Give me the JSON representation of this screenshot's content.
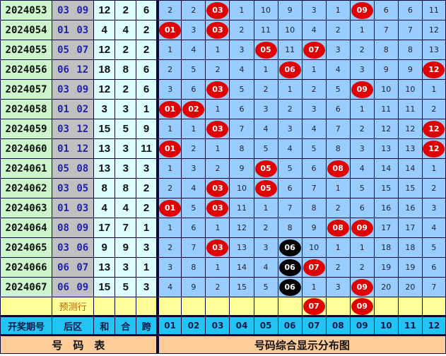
{
  "colors": {
    "hit": "#e00000",
    "repeat_hit": "#000000",
    "grid": "#99ccff",
    "header": "#22c4f4",
    "prediction_row": "#ffff99",
    "footer": "#ffcc99"
  },
  "rows": [
    {
      "issue": "2024053",
      "back": "03 09",
      "sum": "12",
      "he": "2",
      "kua": "6",
      "cells": [
        "2",
        "2",
        "03",
        "1",
        "10",
        "9",
        "3",
        "1",
        "09",
        "6",
        "6",
        "11"
      ],
      "black": []
    },
    {
      "issue": "2024054",
      "back": "01 03",
      "sum": "4",
      "he": "4",
      "kua": "2",
      "cells": [
        "01",
        "3",
        "03",
        "2",
        "11",
        "10",
        "4",
        "2",
        "1",
        "7",
        "7",
        "12"
      ],
      "black": []
    },
    {
      "issue": "2024055",
      "back": "05 07",
      "sum": "12",
      "he": "2",
      "kua": "2",
      "cells": [
        "1",
        "4",
        "1",
        "3",
        "05",
        "11",
        "07",
        "3",
        "2",
        "8",
        "8",
        "13"
      ],
      "black": []
    },
    {
      "issue": "2024056",
      "back": "06 12",
      "sum": "18",
      "he": "8",
      "kua": "6",
      "cells": [
        "2",
        "5",
        "2",
        "4",
        "1",
        "06",
        "1",
        "4",
        "3",
        "9",
        "9",
        "12"
      ],
      "black": []
    },
    {
      "issue": "2024057",
      "back": "03 09",
      "sum": "12",
      "he": "2",
      "kua": "6",
      "cells": [
        "3",
        "6",
        "03",
        "5",
        "2",
        "1",
        "2",
        "5",
        "09",
        "10",
        "10",
        "1"
      ],
      "black": []
    },
    {
      "issue": "2024058",
      "back": "01 02",
      "sum": "3",
      "he": "3",
      "kua": "1",
      "cells": [
        "01",
        "02",
        "1",
        "6",
        "3",
        "2",
        "3",
        "6",
        "1",
        "11",
        "11",
        "2"
      ],
      "black": []
    },
    {
      "issue": "2024059",
      "back": "03 12",
      "sum": "15",
      "he": "5",
      "kua": "9",
      "cells": [
        "1",
        "1",
        "03",
        "7",
        "4",
        "3",
        "4",
        "7",
        "2",
        "12",
        "12",
        "12"
      ],
      "black": []
    },
    {
      "issue": "2024060",
      "back": "01 12",
      "sum": "13",
      "he": "3",
      "kua": "11",
      "cells": [
        "01",
        "2",
        "1",
        "8",
        "5",
        "4",
        "5",
        "8",
        "3",
        "13",
        "13",
        "12"
      ],
      "black": []
    },
    {
      "issue": "2024061",
      "back": "05 08",
      "sum": "13",
      "he": "3",
      "kua": "3",
      "cells": [
        "1",
        "3",
        "2",
        "9",
        "05",
        "5",
        "6",
        "08",
        "4",
        "14",
        "14",
        "1"
      ],
      "black": []
    },
    {
      "issue": "2024062",
      "back": "03 05",
      "sum": "8",
      "he": "8",
      "kua": "2",
      "cells": [
        "2",
        "4",
        "03",
        "10",
        "05",
        "6",
        "7",
        "1",
        "5",
        "15",
        "15",
        "2"
      ],
      "black": []
    },
    {
      "issue": "2024063",
      "back": "01 03",
      "sum": "4",
      "he": "4",
      "kua": "2",
      "cells": [
        "01",
        "5",
        "03",
        "11",
        "1",
        "7",
        "8",
        "2",
        "6",
        "16",
        "16",
        "3"
      ],
      "black": []
    },
    {
      "issue": "2024064",
      "back": "08 09",
      "sum": "17",
      "he": "7",
      "kua": "1",
      "cells": [
        "1",
        "6",
        "1",
        "12",
        "2",
        "8",
        "9",
        "08",
        "09",
        "17",
        "17",
        "4"
      ],
      "black": []
    },
    {
      "issue": "2024065",
      "back": "03 06",
      "sum": "9",
      "he": "9",
      "kua": "3",
      "cells": [
        "2",
        "7",
        "03",
        "13",
        "3",
        "06",
        "10",
        "1",
        "1",
        "18",
        "18",
        "5"
      ],
      "black": [
        6
      ]
    },
    {
      "issue": "2024066",
      "back": "06 07",
      "sum": "13",
      "he": "3",
      "kua": "1",
      "cells": [
        "3",
        "8",
        "1",
        "14",
        "4",
        "06",
        "07",
        "2",
        "2",
        "19",
        "19",
        "6"
      ],
      "black": [
        6
      ]
    },
    {
      "issue": "2024067",
      "back": "06 09",
      "sum": "15",
      "he": "5",
      "kua": "3",
      "cells": [
        "4",
        "9",
        "2",
        "15",
        "5",
        "06",
        "1",
        "3",
        "09",
        "20",
        "20",
        "7"
      ],
      "black": [
        6
      ]
    }
  ],
  "prediction": {
    "label": "预测行",
    "cells": [
      "",
      "",
      "",
      "",
      "",
      "",
      "07",
      "",
      "09",
      "",
      "",
      ""
    ]
  },
  "header": {
    "issue": "开奖期号",
    "back": "后区",
    "sum": "和",
    "he": "合",
    "kua": "跨",
    "numbers": [
      "01",
      "02",
      "03",
      "04",
      "05",
      "06",
      "07",
      "08",
      "09",
      "10",
      "11",
      "12"
    ]
  },
  "footer": {
    "left": "号　码　表",
    "right": "号码综合显示分布图"
  }
}
